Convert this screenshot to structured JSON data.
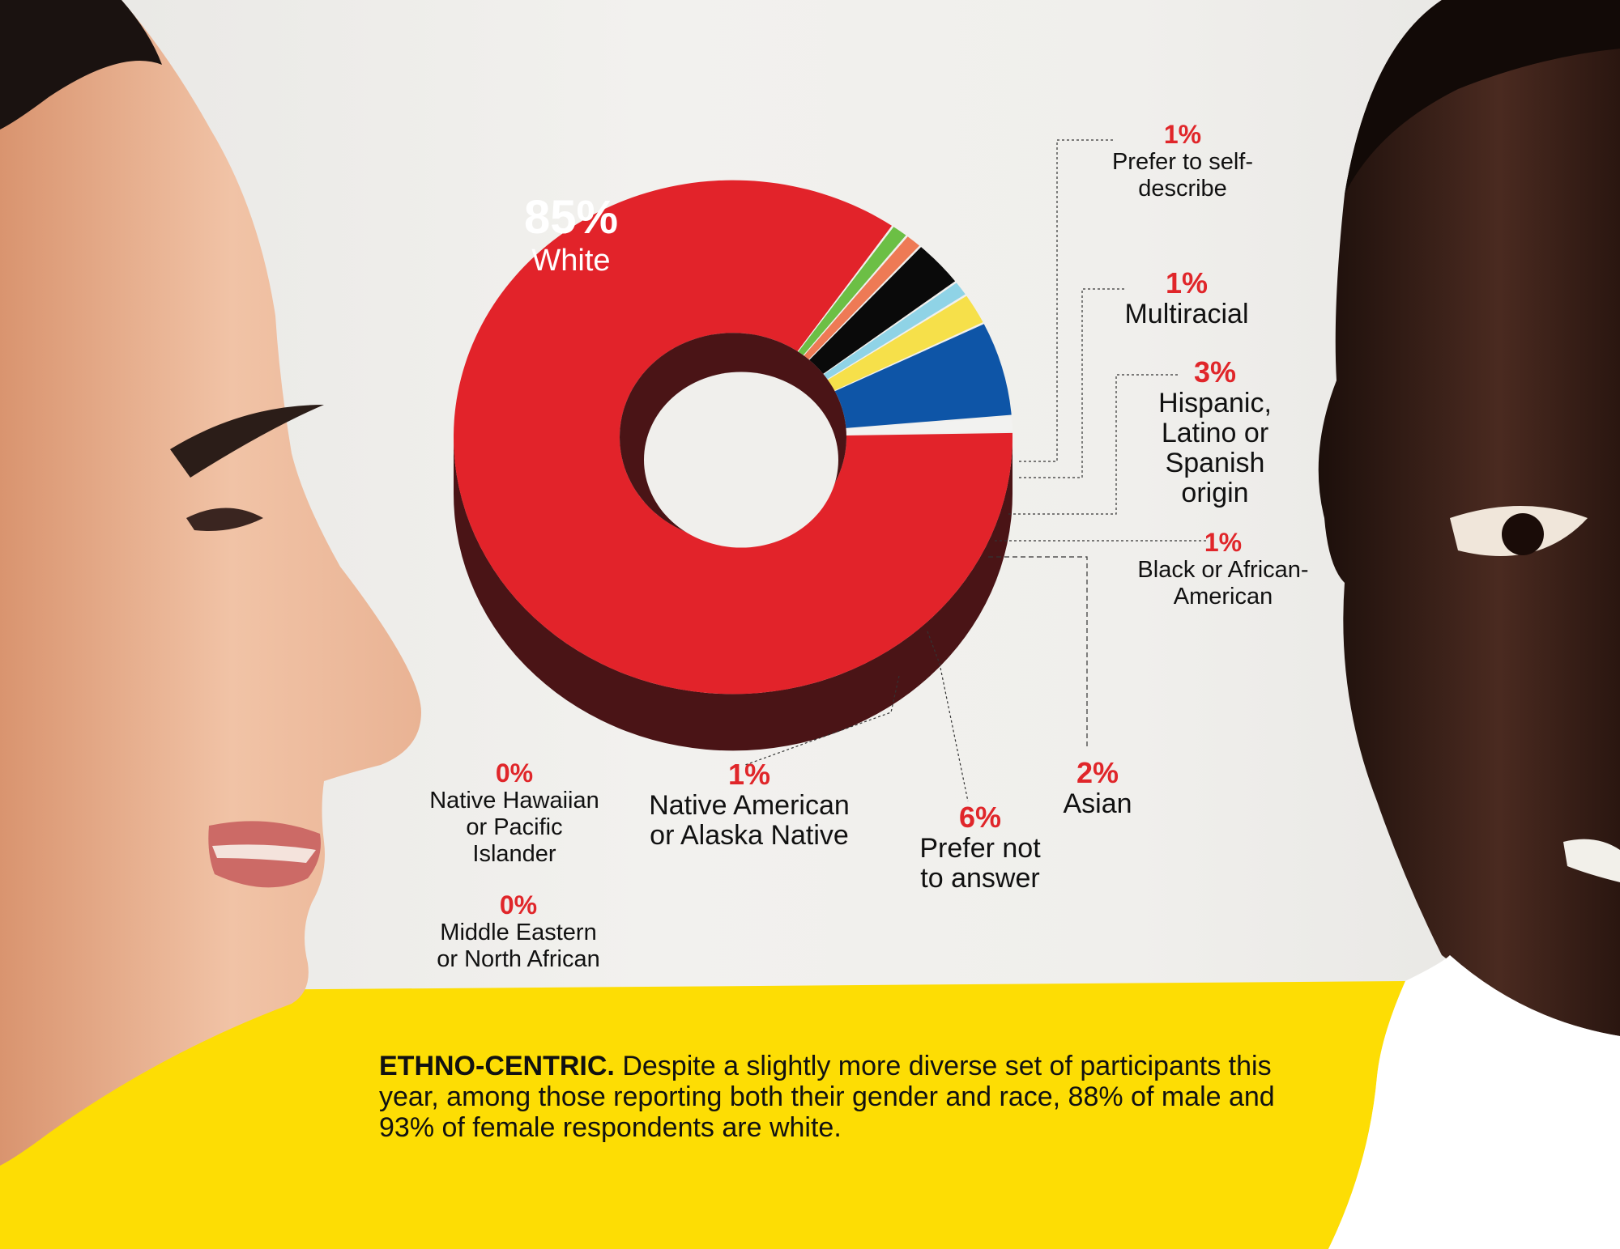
{
  "colors": {
    "white": "#e2232a",
    "white_side": "#4a1416",
    "self_describe": "#6cbf45",
    "multiracial": "#ee7a55",
    "hispanic": "#0a0a0a",
    "black": "#8fd3e6",
    "asian": "#f6e04a",
    "prefer_not": "#0e55a7",
    "native_american": "#f2f2f0",
    "accent_red": "#e0262a",
    "caption_band": "#fddd04"
  },
  "chart_data": {
    "type": "pie",
    "style": "3d-donut",
    "title": "",
    "categories": [
      "White",
      "Prefer to self-describe",
      "Multiracial",
      "Hispanic, Latino or Spanish origin",
      "Black or African-American",
      "Asian",
      "Prefer not to answer",
      "Native American or Alaska Native",
      "Native Hawaiian or Pacific Islander",
      "Middle Eastern or North African"
    ],
    "values": [
      85,
      1,
      1,
      3,
      1,
      2,
      6,
      1,
      0,
      0
    ],
    "labels": [
      {
        "pct": "85%",
        "name": "White"
      },
      {
        "pct": "1%",
        "name": "Prefer to self-\ndescribe"
      },
      {
        "pct": "1%",
        "name": "Multiracial"
      },
      {
        "pct": "3%",
        "name": "Hispanic,\nLatino or\nSpanish\norigin"
      },
      {
        "pct": "1%",
        "name": "Black or African-\nAmerican"
      },
      {
        "pct": "2%",
        "name": "Asian"
      },
      {
        "pct": "6%",
        "name": "Prefer not\nto answer"
      },
      {
        "pct": "1%",
        "name": "Native American\nor Alaska Native"
      },
      {
        "pct": "0%",
        "name": "Native Hawaiian\nor Pacific\nIslander"
      },
      {
        "pct": "0%",
        "name": "Middle Eastern\nor North African"
      }
    ]
  },
  "caption": {
    "kicker": "ETHNO-CENTRIC.",
    "text": " Despite a slightly more diverse set of participants this year, among those reporting both their gender and race, 88% of male and 93% of female respondents are white."
  },
  "images": {
    "left": "woman-profile-photo",
    "right": "smiling-man-photo"
  }
}
